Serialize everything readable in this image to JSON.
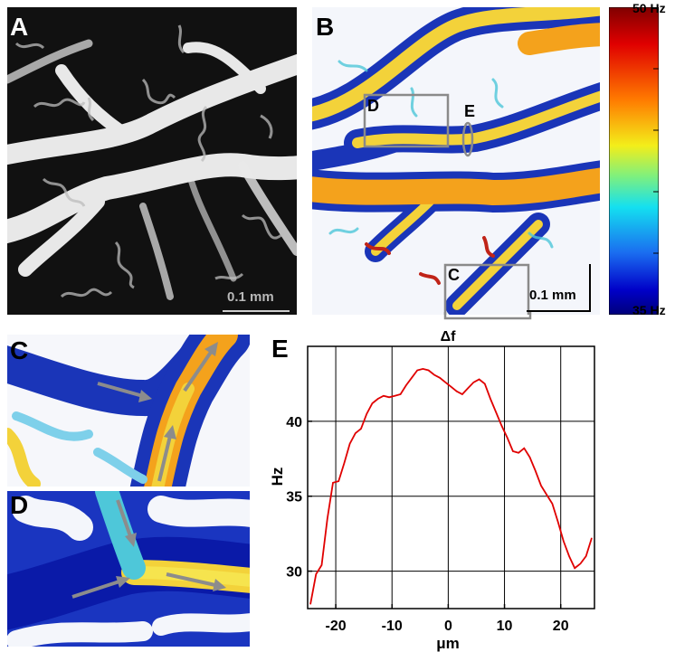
{
  "panels": {
    "a": {
      "label": "A",
      "scale_bar": "0.1 mm"
    },
    "b": {
      "label": "B",
      "scale_bar": "0.1 mm",
      "roi_d": "D",
      "roi_e": "E",
      "roi_c": "C"
    },
    "c": {
      "label": "C"
    },
    "d": {
      "label": "D"
    },
    "e": {
      "label": "E"
    }
  },
  "colorbar": {
    "max_label": "50 Hz",
    "min_label": "35 Hz"
  },
  "colors": {
    "line": "#e00000",
    "roi_box": "#8a8a8a",
    "arrow": "#8c8c8c"
  },
  "chart_data": {
    "type": "line",
    "title": "Δf",
    "xlabel": "μm",
    "ylabel": "Hz",
    "xlim": [
      -25,
      26
    ],
    "ylim": [
      27.5,
      45
    ],
    "xticks": [
      -20,
      -10,
      0,
      10,
      20
    ],
    "yticks": [
      30,
      35,
      40
    ],
    "grid": true,
    "series": [
      {
        "x": [
          -24.5,
          -23.5,
          -22.5,
          -21.5,
          -20.5,
          -19.5,
          -18.5,
          -17.5,
          -16.5,
          -15.5,
          -14.5,
          -13.5,
          -12.5,
          -11.5,
          -10.5,
          -9.5,
          -8.5,
          -7.5,
          -6.5,
          -5.5,
          -4.5,
          -3.5,
          -2.5,
          -1.5,
          -0.5,
          0.5,
          1.5,
          2.5,
          3.5,
          4.5,
          5.5,
          6.5,
          7.5,
          8.5,
          9.5,
          10.5,
          11.5,
          12.5,
          13.5,
          14.5,
          15.5,
          16.5,
          17.5,
          18.5,
          19.5,
          20.5,
          21.5,
          22.5,
          23.5,
          24.5,
          25.5
        ],
        "y": [
          27.8,
          29.8,
          30.4,
          33.5,
          35.9,
          36.0,
          37.2,
          38.5,
          39.2,
          39.5,
          40.5,
          41.2,
          41.5,
          41.7,
          41.6,
          41.7,
          41.8,
          42.4,
          42.9,
          43.4,
          43.5,
          43.4,
          43.1,
          42.9,
          42.6,
          42.3,
          42.0,
          41.8,
          42.2,
          42.6,
          42.8,
          42.5,
          41.5,
          40.6,
          39.7,
          38.9,
          38.0,
          37.9,
          38.2,
          37.6,
          36.7,
          35.7,
          35.1,
          34.5,
          33.3,
          32.0,
          31.0,
          30.2,
          30.5,
          31.0,
          32.2
        ]
      }
    ]
  }
}
